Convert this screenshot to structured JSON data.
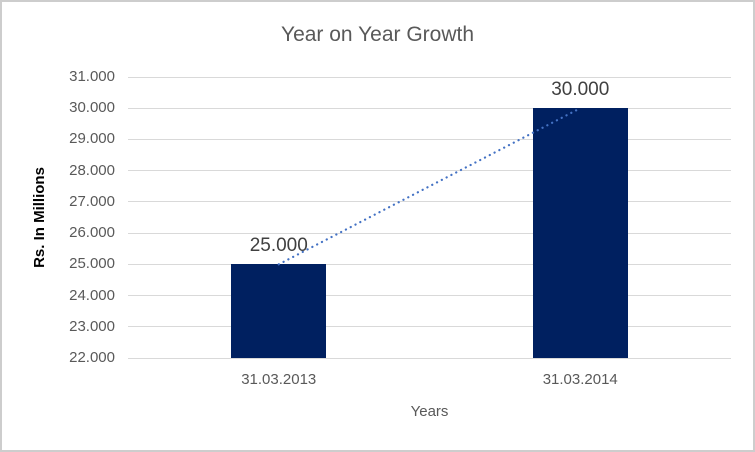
{
  "chart_data": {
    "type": "bar",
    "title": "Year on Year Growth",
    "xlabel": "Years",
    "ylabel": "Rs. In Millions",
    "categories": [
      "31.03.2013",
      "31.03.2014"
    ],
    "values": [
      25000,
      30000
    ],
    "value_labels": [
      "25.000",
      "30.000"
    ],
    "ylim": [
      22000,
      31000
    ],
    "ytick_interval": 1000,
    "ytick_labels": [
      "22.000",
      "23.000",
      "24.000",
      "25.000",
      "26.000",
      "27.000",
      "28.000",
      "29.000",
      "30.000",
      "31.000"
    ],
    "grid": true,
    "legend": "none",
    "trendline": {
      "style": "dotted",
      "points": [
        [
          0,
          25000
        ],
        [
          1,
          30000
        ]
      ]
    },
    "colors": {
      "bar": "#002060",
      "trendline": "#4472C4",
      "gridline": "#D9D9D9",
      "frame_border": "#CDCDCD",
      "background": "#FFFFFF",
      "title_text": "#595959",
      "axis_tick_text": "#595959",
      "data_label_text": "#404040",
      "axis_title_x_text": "#595959",
      "axis_title_y_text": "#000000"
    }
  }
}
